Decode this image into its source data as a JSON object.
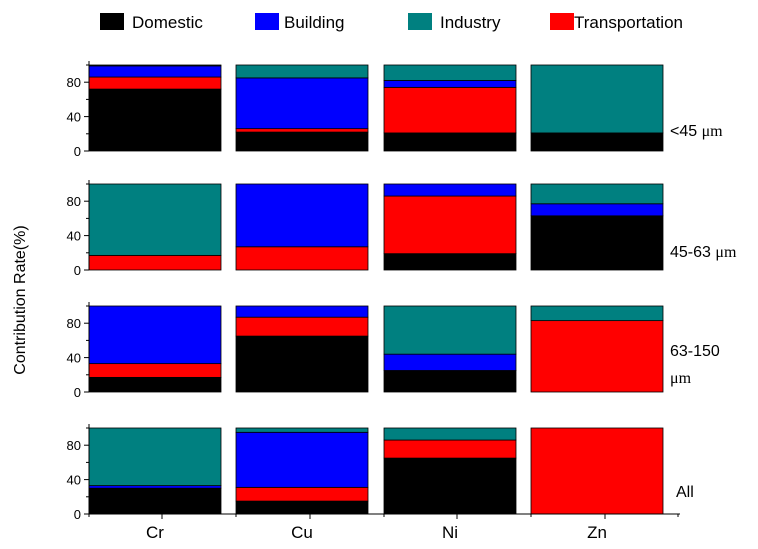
{
  "chart_data": {
    "type": "bar",
    "stacked": true,
    "normalized": true,
    "ylabel": "Contribution Rate(%)",
    "categories": [
      "Cr",
      "Cu",
      "Ni",
      "Zn"
    ],
    "series": [
      {
        "name": "Domestic",
        "color": "#000000"
      },
      {
        "name": "Building",
        "color": "#0000ff"
      },
      {
        "name": "Industry",
        "color": "#008080"
      },
      {
        "name": "Transportation",
        "color": "#ff0000"
      }
    ],
    "stack_order": [
      "Domestic",
      "Transportation",
      "Building",
      "Industry"
    ],
    "yticks": [
      "0",
      "40",
      "80"
    ],
    "ylim": [
      0,
      100
    ],
    "legend": "top",
    "grid": false,
    "panels": [
      {
        "label": "<45 ",
        "unit": "μm",
        "values": {
          "Domestic": [
            72,
            22,
            21,
            21
          ],
          "Transportation": [
            14,
            4,
            53,
            0
          ],
          "Building": [
            13,
            59,
            8,
            0
          ],
          "Industry": [
            1,
            15,
            18,
            79
          ]
        }
      },
      {
        "label": "45-63 ",
        "unit": "μm",
        "values": {
          "Domestic": [
            0,
            0,
            19,
            63
          ],
          "Transportation": [
            17,
            27,
            67,
            0
          ],
          "Building": [
            0,
            73,
            14,
            14
          ],
          "Industry": [
            83,
            0,
            0,
            23
          ]
        }
      },
      {
        "label": "63-150",
        "unit": "μm",
        "values": {
          "Domestic": [
            17,
            65,
            25,
            0
          ],
          "Transportation": [
            16,
            22,
            0,
            83
          ],
          "Building": [
            67,
            13,
            19,
            0
          ],
          "Industry": [
            0,
            0,
            56,
            17
          ]
        }
      },
      {
        "label": "All",
        "unit": "",
        "values": {
          "Domestic": [
            30,
            15,
            65,
            0
          ],
          "Transportation": [
            0,
            16,
            21,
            100
          ],
          "Building": [
            3,
            64,
            0,
            0
          ],
          "Industry": [
            67,
            5,
            14,
            0
          ]
        }
      }
    ]
  }
}
